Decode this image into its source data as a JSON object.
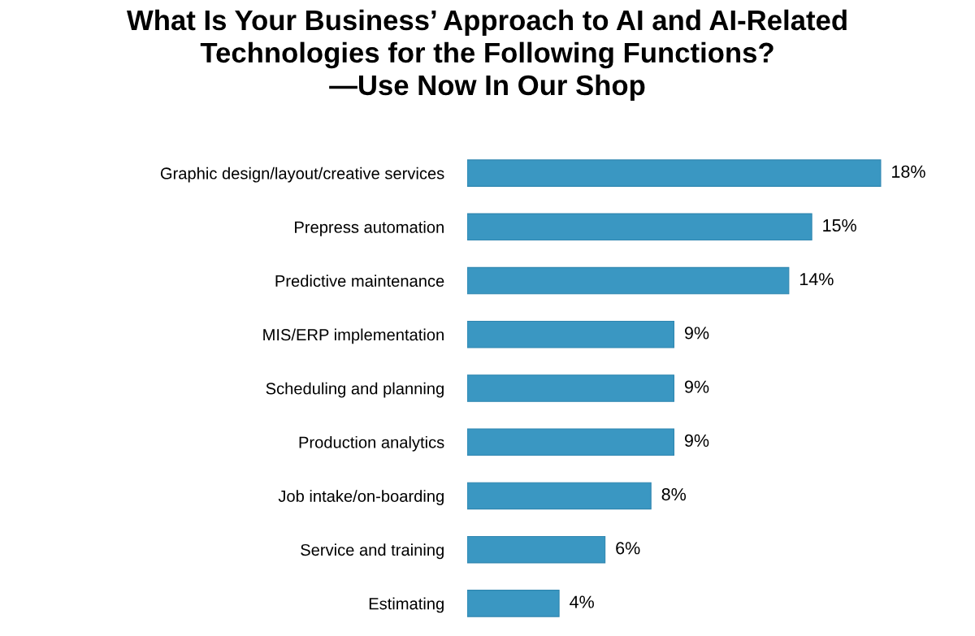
{
  "chart_data": {
    "type": "bar",
    "orientation": "horizontal",
    "title": "What Is Your Business’ Approach to AI and AI-Related\nTechnologies for the Following Functions?\n—Use Now In Our Shop",
    "categories": [
      "Graphic design/layout/creative services",
      "Prepress automation",
      "Predictive maintenance",
      "MIS/ERP implementation",
      "Scheduling and planning",
      "Production analytics",
      "Job intake/on-boarding",
      "Service and training",
      "Estimating"
    ],
    "values": [
      18,
      15,
      14,
      9,
      9,
      9,
      8,
      6,
      4
    ],
    "color": "#3a97c2",
    "value_labels": [
      "18%",
      "15%",
      "14%",
      "9%",
      "9%",
      "9%",
      "8%",
      "6%",
      "4%"
    ],
    "tick_labels": "y",
    "grid": false,
    "legend": false
  }
}
